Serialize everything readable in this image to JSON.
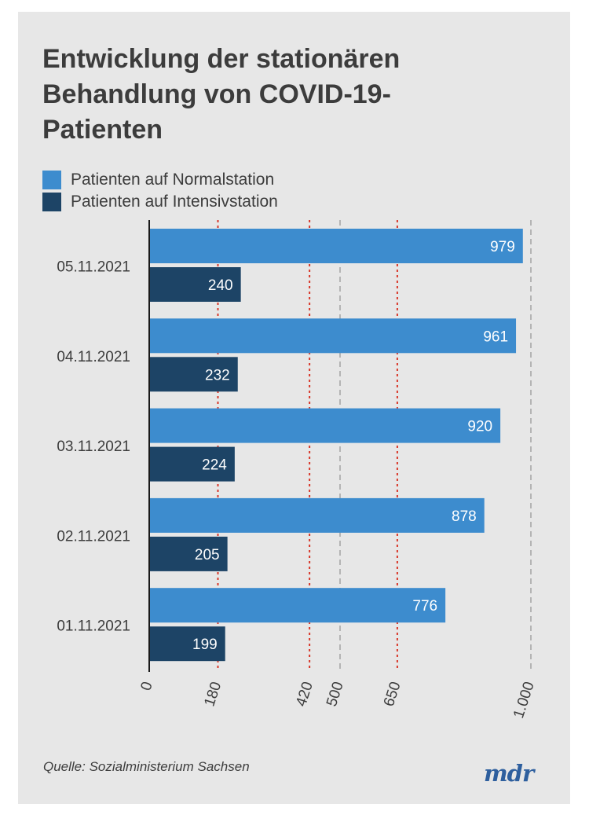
{
  "title": "Entwicklung der stationären Behandlung von COVID-19-Patienten",
  "source": "Quelle: Sozialministerium Sachsen",
  "logo_text": "mdr",
  "colors": {
    "background": "#e7e7e7",
    "normalstation": "#3d8cce",
    "intensivstation": "#1d4466",
    "threshold_line": "#d8392b",
    "grid_line": "#b4b4b4",
    "text": "#3c3c3c"
  },
  "chart_data": {
    "type": "bar",
    "orientation": "horizontal",
    "categories": [
      "05.11.2021",
      "04.11.2021",
      "03.11.2021",
      "02.11.2021",
      "01.11.2021"
    ],
    "series": [
      {
        "name": "Patienten auf Normalstation",
        "values": [
          979,
          961,
          920,
          878,
          776
        ],
        "color": "#3d8cce"
      },
      {
        "name": "Patienten auf Intensivstation",
        "values": [
          240,
          232,
          224,
          205,
          199
        ],
        "color": "#1d4466"
      }
    ],
    "xlim": [
      0,
      1000
    ],
    "x_ticks": [
      0,
      180,
      420,
      500,
      650,
      1000
    ],
    "x_tick_labels": [
      "0",
      "180",
      "420",
      "500",
      "650",
      "1.000"
    ],
    "threshold_lines": [
      180,
      420,
      650
    ],
    "grid_lines": [
      500,
      1000
    ],
    "legend_position": "top-left",
    "title": "Entwicklung der stationären Behandlung von COVID-19-Patienten"
  }
}
